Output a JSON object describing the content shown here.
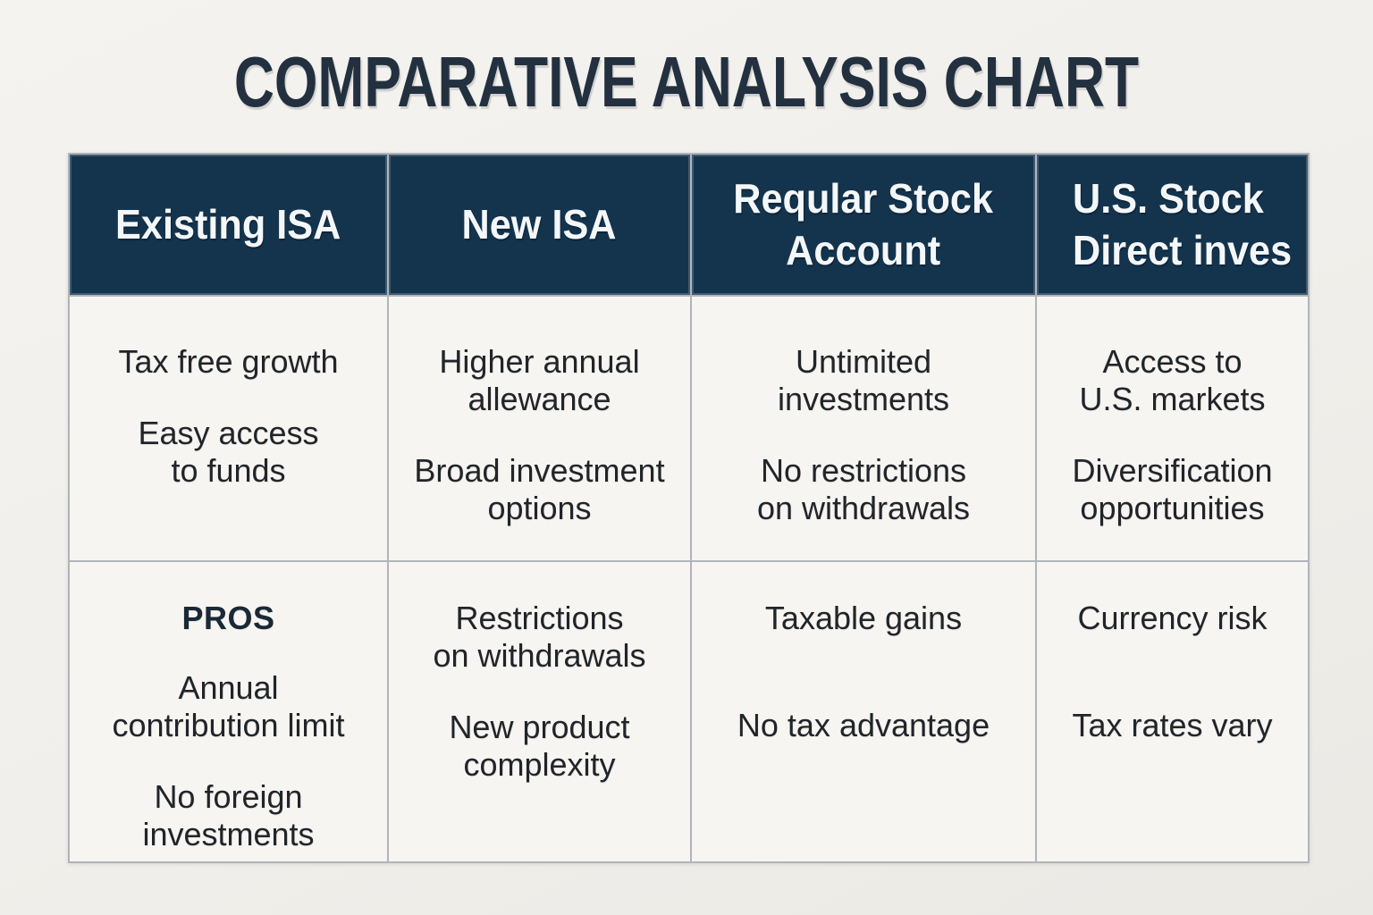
{
  "title": "COMPARATIVE ANALYSIS CHART",
  "colors": {
    "page_background": "#f1efeb",
    "cell_background": "#f7f5f2",
    "header_background": "#14344e",
    "header_text": "#f4f7f9",
    "title_text": "#22303f",
    "body_text": "#212529",
    "grid_border": "#b0b5bb"
  },
  "table": {
    "headers": [
      {
        "label": "Existing ISA"
      },
      {
        "label": "New ISA"
      },
      {
        "label": "Reqular Stock\nAccount"
      },
      {
        "label": "U.S. Stock\nDirect inves"
      }
    ],
    "rows": [
      {
        "cells": [
          {
            "paragraphs": [
              "Tax free growth",
              "Easy access\nto funds"
            ]
          },
          {
            "paragraphs": [
              "Higher annual\nallewance",
              "Broad investment\noptions"
            ]
          },
          {
            "paragraphs": [
              "Untimited\ninvestments",
              "No restrictions\non withdrawals"
            ]
          },
          {
            "paragraphs": [
              "Access to\nU.S. markets",
              "Diversification\nopportunities"
            ]
          }
        ]
      },
      {
        "cells": [
          {
            "heading": "PROS",
            "paragraphs": [
              "Annual\ncontribution limit",
              "No foreign\ninvestments"
            ]
          },
          {
            "paragraphs": [
              "Restrictions\non withdrawals",
              "New product\ncomplexity"
            ]
          },
          {
            "paragraphs": [
              "Taxable gains",
              "No tax advantage"
            ]
          },
          {
            "paragraphs": [
              "Currency risk",
              "Tax rates vary"
            ]
          }
        ]
      }
    ]
  },
  "chart_data": {
    "type": "table",
    "title": "COMPARATIVE ANALYSIS CHART",
    "columns": [
      "Existing ISA",
      "New ISA",
      "Reqular Stock Account",
      "U.S. Stock Direct inves"
    ],
    "rows": [
      {
        "Existing ISA": [
          "Tax free growth",
          "Easy access to funds"
        ],
        "New ISA": [
          "Higher annual allewance",
          "Broad investment options"
        ],
        "Reqular Stock Account": [
          "Untimited investments",
          "No restrictions on withdrawals"
        ],
        "U.S. Stock Direct inves": [
          "Access to U.S. markets",
          "Diversification opportunities"
        ]
      },
      {
        "Existing ISA": [
          "PROS",
          "Annual contribution limit",
          "No foreign investments"
        ],
        "New ISA": [
          "Restrictions on withdrawals",
          "New product complexity"
        ],
        "Reqular Stock Account": [
          "Taxable gains",
          "No tax advantage"
        ],
        "U.S. Stock Direct inves": [
          "Currency risk",
          "Tax rates vary"
        ]
      }
    ]
  }
}
